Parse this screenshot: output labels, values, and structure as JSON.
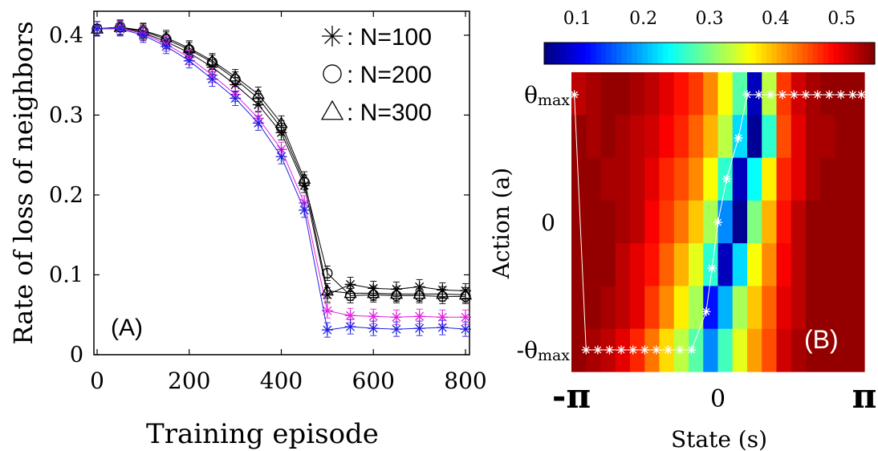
{
  "chart_data": [
    {
      "type": "line",
      "panel_label": "(A)",
      "xlabel": "Training episode",
      "ylabel": "Rate of loss of neighbors",
      "xlim": [
        0,
        800
      ],
      "ylim": [
        0,
        0.43
      ],
      "xticks": [
        "0",
        "200",
        "400",
        "600",
        "800"
      ],
      "yticks": [
        "0",
        "0.1",
        "0.2",
        "0.3",
        "0.4"
      ],
      "x": [
        0,
        50,
        100,
        150,
        200,
        250,
        300,
        350,
        400,
        450,
        500,
        550,
        600,
        650,
        700,
        750,
        800
      ],
      "legend_placement": "top-right",
      "legend": [
        {
          "marker": "asterisk",
          "label": ": N=100"
        },
        {
          "marker": "circle",
          "label": ": N=200"
        },
        {
          "marker": "triangle",
          "label": ": N=300"
        }
      ],
      "series": [
        {
          "marker": "asterisk",
          "color": "#000000",
          "values": [
            0.408,
            0.41,
            0.403,
            0.392,
            0.378,
            0.36,
            0.338,
            0.313,
            0.278,
            0.212,
            0.075,
            0.088,
            0.083,
            0.082,
            0.085,
            0.081,
            0.08
          ]
        },
        {
          "marker": "circle",
          "color": "#000000",
          "values": [
            0.408,
            0.41,
            0.405,
            0.395,
            0.382,
            0.366,
            0.345,
            0.321,
            0.284,
            0.216,
            0.102,
            0.074,
            0.075,
            0.074,
            0.074,
            0.073,
            0.073
          ]
        },
        {
          "marker": "triangle",
          "color": "#000000",
          "values": [
            0.408,
            0.41,
            0.406,
            0.397,
            0.384,
            0.368,
            0.348,
            0.326,
            0.29,
            0.22,
            0.08,
            0.077,
            0.077,
            0.076,
            0.076,
            0.076,
            0.075
          ]
        },
        {
          "marker": "asterisk",
          "color": "#e020e0",
          "values": [
            0.408,
            0.409,
            0.402,
            0.389,
            0.372,
            0.35,
            0.326,
            0.296,
            0.257,
            0.19,
            0.055,
            0.049,
            0.048,
            0.047,
            0.048,
            0.047,
            0.047
          ]
        },
        {
          "marker": "asterisk",
          "color": "#2020e0",
          "values": [
            0.408,
            0.408,
            0.4,
            0.386,
            0.368,
            0.345,
            0.321,
            0.29,
            0.248,
            0.181,
            0.031,
            0.035,
            0.033,
            0.032,
            0.033,
            0.034,
            0.032
          ]
        }
      ]
    },
    {
      "type": "heatmap",
      "panel_label": "(B)",
      "xlabel": "State (s)",
      "ylabel": "Action (a)",
      "xticks": [
        "-π",
        "0",
        "π"
      ],
      "yticks": [
        {
          "main": "θ",
          "sub": "max"
        },
        {
          "main": "0",
          "sub": ""
        },
        {
          "main": "-θ",
          "sub": "max"
        }
      ],
      "colorbar_range": [
        0.05,
        0.55
      ],
      "colorbar_ticks": [
        "0.1",
        "0.2",
        "0.3",
        "0.4",
        "0.5"
      ],
      "colorbar_placement": "top",
      "n_cols": 20,
      "n_rows": 7,
      "note_rows": "row 0 = top (theta_max), row 6 = bottom (-theta_max)",
      "values": [
        [
          0.52,
          0.53,
          0.54,
          0.54,
          0.53,
          0.52,
          0.5,
          0.48,
          0.46,
          0.42,
          0.36,
          0.28,
          0.08,
          0.33,
          0.46,
          0.51,
          0.53,
          0.54,
          0.54,
          0.54
        ],
        [
          0.54,
          0.53,
          0.54,
          0.53,
          0.52,
          0.51,
          0.49,
          0.47,
          0.44,
          0.4,
          0.33,
          0.22,
          0.06,
          0.26,
          0.45,
          0.5,
          0.53,
          0.53,
          0.54,
          0.54
        ],
        [
          0.54,
          0.54,
          0.53,
          0.53,
          0.52,
          0.5,
          0.47,
          0.45,
          0.42,
          0.36,
          0.26,
          0.08,
          0.24,
          0.37,
          0.47,
          0.5,
          0.53,
          0.54,
          0.54,
          0.54
        ],
        [
          0.54,
          0.54,
          0.54,
          0.53,
          0.52,
          0.49,
          0.46,
          0.43,
          0.39,
          0.32,
          0.18,
          0.06,
          0.3,
          0.4,
          0.48,
          0.52,
          0.54,
          0.54,
          0.54,
          0.54
        ],
        [
          0.54,
          0.54,
          0.54,
          0.52,
          0.5,
          0.48,
          0.44,
          0.4,
          0.35,
          0.26,
          0.08,
          0.22,
          0.36,
          0.42,
          0.49,
          0.52,
          0.54,
          0.54,
          0.54,
          0.54
        ],
        [
          0.54,
          0.54,
          0.53,
          0.52,
          0.5,
          0.46,
          0.42,
          0.37,
          0.32,
          0.12,
          0.2,
          0.32,
          0.39,
          0.44,
          0.5,
          0.52,
          0.54,
          0.54,
          0.54,
          0.54
        ],
        [
          0.54,
          0.53,
          0.52,
          0.5,
          0.47,
          0.43,
          0.38,
          0.33,
          0.28,
          0.18,
          0.27,
          0.35,
          0.41,
          0.45,
          0.51,
          0.53,
          0.54,
          0.54,
          0.54,
          0.54
        ]
      ],
      "policy": {
        "x_frac": [
          0.01,
          0.05,
          0.09,
          0.13,
          0.17,
          0.21,
          0.25,
          0.29,
          0.33,
          0.37,
          0.41,
          0.46,
          0.48,
          0.5,
          0.53,
          0.57,
          0.6,
          0.64,
          0.68,
          0.72,
          0.76,
          0.8,
          0.84,
          0.88,
          0.92,
          0.96,
          0.99
        ],
        "action_frac": [
          0.0,
          1.0,
          1.0,
          1.0,
          1.0,
          1.0,
          1.0,
          1.0,
          1.0,
          1.0,
          1.0,
          0.85,
          0.68,
          0.5,
          0.33,
          0.17,
          0.0,
          0.0,
          0.0,
          0.0,
          0.0,
          0.0,
          0.0,
          0.0,
          0.0,
          0.0,
          0.0
        ]
      }
    }
  ]
}
